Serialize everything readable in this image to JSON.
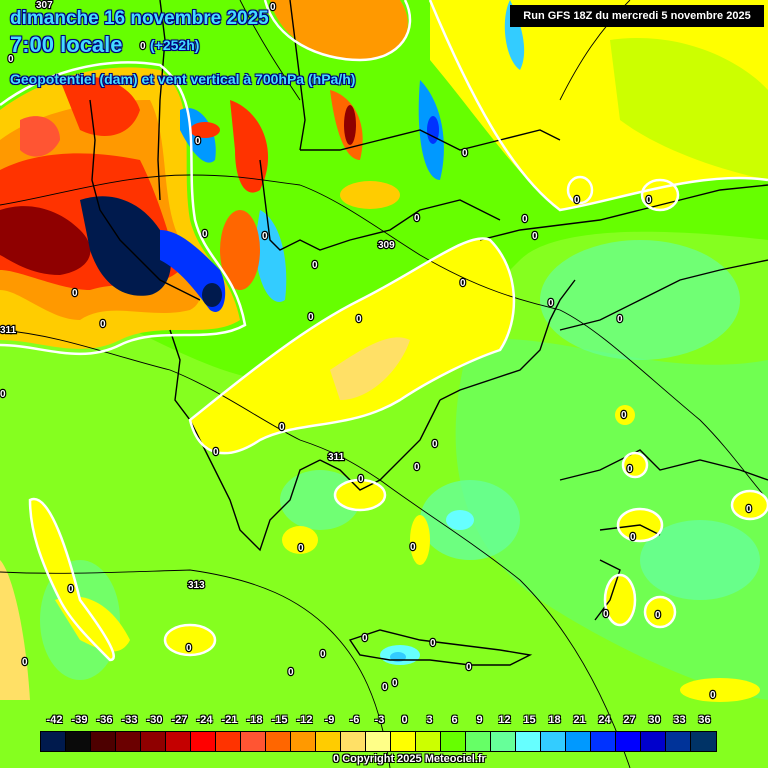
{
  "header": {
    "date": "dimanche 16 novembre 2025",
    "time": "7:00 locale",
    "offset": "(+252h)",
    "parameter": "Geopotentiel (dam) et vent vertical à 700hPa (hPa/h)",
    "run": "Run GFS 18Z du mercredi 5 novembre 2025"
  },
  "legend": {
    "ticks": [
      "-42",
      "-39",
      "-36",
      "-33",
      "-30",
      "-27",
      "-24",
      "-21",
      "-18",
      "-15",
      "-12",
      "-9",
      "-6",
      "-3",
      "0",
      "3",
      "6",
      "9",
      "12",
      "15",
      "18",
      "21",
      "24",
      "27",
      "30",
      "33",
      "36"
    ],
    "colors": [
      "#001a4d",
      "#0a0a0a",
      "#4d0000",
      "#6b0000",
      "#8f0000",
      "#c40000",
      "#ff0000",
      "#ff3300",
      "#ff5533",
      "#ff6600",
      "#ff9900",
      "#ffcc00",
      "#ffe066",
      "#ffff88",
      "#ffff00",
      "#ccff00",
      "#66ff00",
      "#66ff66",
      "#66ff99",
      "#66ffff",
      "#33ccff",
      "#0099ff",
      "#0033ff",
      "#0000ff",
      "#0000cc",
      "#003399",
      "#003366"
    ]
  },
  "isolines": {
    "geopotential_labels": [
      "307",
      "309",
      "311",
      "313",
      "311"
    ],
    "zero_label": "0"
  },
  "copyright": {
    "zero": "0",
    "text": "Copyright 2025 Meteociel.fr"
  }
}
